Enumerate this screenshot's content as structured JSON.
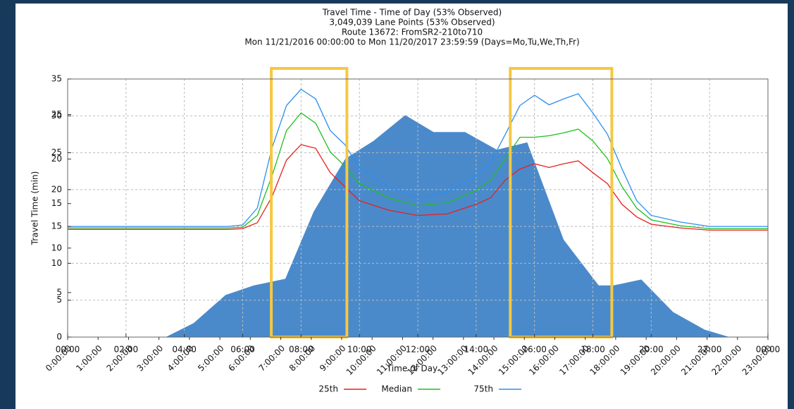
{
  "chart_data": {
    "type": "line",
    "title": [
      "Travel Time - Time of Day (53% Observed)",
      "3,049,039 Lane Points (53% Observed)",
      "Route 13672: FromSR2-210to710",
      "Mon 11/21/2016 00:00:00 to Mon 11/20/2017 23:59:59 (Days=Mo,Tu,We,Th,Fr)"
    ],
    "xlabel": "Time of Day",
    "ylabel": "Travel Time (min)",
    "xlim": [
      0,
      24
    ],
    "xticks": [
      {
        "value": 0,
        "label": "00:00"
      },
      {
        "value": 2,
        "label": "02:00"
      },
      {
        "value": 4,
        "label": "04:00"
      },
      {
        "value": 6,
        "label": "06:00"
      },
      {
        "value": 8,
        "label": "08:00"
      },
      {
        "value": 10,
        "label": "10:00"
      },
      {
        "value": 12,
        "label": "12:00"
      },
      {
        "value": 14,
        "label": "14:00"
      },
      {
        "value": 16,
        "label": "16:00"
      },
      {
        "value": 18,
        "label": "18:00"
      },
      {
        "value": 20,
        "label": "20:00"
      },
      {
        "value": 22,
        "label": "22:00"
      },
      {
        "value": 24,
        "label": "00:00"
      }
    ],
    "x2lim": [
      0,
      23
    ],
    "x2ticks": [
      {
        "value": 0,
        "label": "0:00:00"
      },
      {
        "value": 1,
        "label": "1:00:00"
      },
      {
        "value": 2,
        "label": "2:00:00"
      },
      {
        "value": 3,
        "label": "3:00:00"
      },
      {
        "value": 4,
        "label": "4:00:00"
      },
      {
        "value": 5,
        "label": "5:00:00"
      },
      {
        "value": 6,
        "label": "6:00:00"
      },
      {
        "value": 7,
        "label": "7:00:00"
      },
      {
        "value": 8,
        "label": "8:00:00"
      },
      {
        "value": 9,
        "label": "9:00:00"
      },
      {
        "value": 10,
        "label": "10:00:00"
      },
      {
        "value": 11,
        "label": "11:00:00"
      },
      {
        "value": 12,
        "label": "12:00:00"
      },
      {
        "value": 13,
        "label": "13:00:00"
      },
      {
        "value": 14,
        "label": "14:00:00"
      },
      {
        "value": 15,
        "label": "15:00:00"
      },
      {
        "value": 16,
        "label": "16:00:00"
      },
      {
        "value": 17,
        "label": "17:00:00"
      },
      {
        "value": 18,
        "label": "18:00:00"
      },
      {
        "value": 19,
        "label": "19:00:00"
      },
      {
        "value": 20,
        "label": "20:00:00"
      },
      {
        "value": 21,
        "label": "21:00:00"
      },
      {
        "value": 22,
        "label": "22:00:00"
      },
      {
        "value": 23,
        "label": "23:00:00"
      }
    ],
    "ylim": [
      0,
      35
    ],
    "yticks": [
      0,
      5,
      10,
      15,
      20,
      25,
      30,
      35
    ],
    "y2lim": [
      0,
      29
    ],
    "y2ticks": [
      5,
      10,
      15,
      20,
      25
    ],
    "grid": true,
    "area": {
      "color": "#4a8acb",
      "x": [
        3.36,
        4.32,
        5.41,
        6.38,
        7.46,
        8.43,
        9.52,
        10.48,
        11.57,
        12.54,
        13.62,
        14.71,
        15.75,
        17.0,
        18.2,
        18.7,
        19.66,
        20.75,
        21.83,
        22.68
      ],
      "values": [
        0,
        1.9,
        5.7,
        7.0,
        7.9,
        17.0,
        24.2,
        26.6,
        30.1,
        27.8,
        27.8,
        25.4,
        26.4,
        13.2,
        7.0,
        7.0,
        7.8,
        3.4,
        1.0,
        0
      ]
    },
    "x": [
      0,
      1,
      2,
      3,
      4,
      5,
      5.5,
      6,
      6.5,
      7,
      7.5,
      8,
      8.5,
      9,
      9.5,
      10,
      11,
      12,
      13,
      14,
      14.5,
      15,
      15.5,
      16,
      16.5,
      17,
      17.5,
      18,
      18.5,
      19,
      19.5,
      20,
      21,
      22,
      23,
      24
    ],
    "series": [
      {
        "name": "25th",
        "color": "#e8201f",
        "values": [
          14.6,
          14.6,
          14.6,
          14.6,
          14.6,
          14.6,
          14.6,
          14.7,
          15.5,
          19,
          24,
          26.1,
          25.6,
          22.3,
          20.4,
          18.5,
          17.2,
          16.5,
          16.7,
          18,
          18.9,
          21.3,
          22.8,
          23.5,
          23,
          23.5,
          23.9,
          22.3,
          20.8,
          18,
          16.3,
          15.3,
          14.8,
          14.5,
          14.5,
          14.5
        ]
      },
      {
        "name": "Median",
        "color": "#1fbf1f",
        "values": [
          14.8,
          14.8,
          14.8,
          14.8,
          14.8,
          14.8,
          14.8,
          14.9,
          16.5,
          21.8,
          28,
          30.4,
          29,
          25.1,
          23.2,
          20.8,
          18.9,
          17.8,
          18.2,
          19.9,
          21.3,
          24.2,
          27.1,
          27.1,
          27.3,
          27.7,
          28.2,
          26.6,
          24.2,
          20.4,
          17.5,
          15.9,
          15.1,
          14.7,
          14.7,
          14.7
        ]
      },
      {
        "name": "75th",
        "color": "#2a8ef0",
        "values": [
          15,
          15,
          15,
          15,
          15,
          15,
          15,
          15.2,
          17.5,
          25.6,
          31.4,
          33.6,
          32.3,
          28,
          26.1,
          22.9,
          20.4,
          18.9,
          19.7,
          21.8,
          23.7,
          27.5,
          31.4,
          32.8,
          31.5,
          32.3,
          33,
          30.4,
          27.5,
          22.8,
          18.5,
          16.5,
          15.6,
          15,
          15,
          15
        ]
      }
    ],
    "highlights": {
      "color": "#f5c842",
      "ranges": [
        [
          6.98,
          9.57
        ],
        [
          15.17,
          18.65
        ]
      ]
    }
  }
}
